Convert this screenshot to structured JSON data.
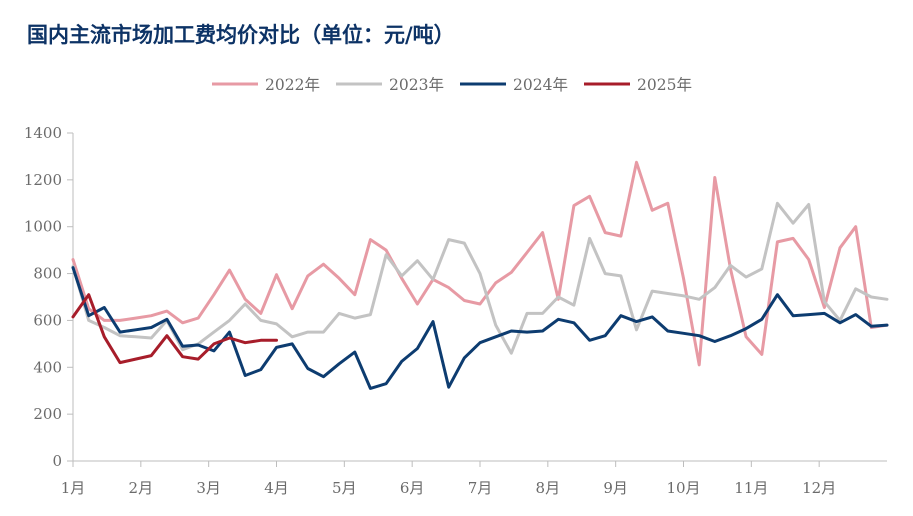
{
  "chart_data": {
    "type": "line",
    "title": "国内主流市场加工费均价对比（单位：元/吨）",
    "x_ticks": [
      "1月",
      "2月",
      "3月",
      "4月",
      "5月",
      "6月",
      "7月",
      "8月",
      "9月",
      "10月",
      "11月",
      "12月"
    ],
    "y_ticks": [
      "0",
      "200",
      "400",
      "600",
      "800",
      "1000",
      "1200",
      "1400"
    ],
    "ylim": [
      0,
      1400
    ],
    "grid": false,
    "legend_position": "top-center",
    "x_unit": "week",
    "series": [
      {
        "name": "2022年",
        "color": "#e79aa4",
        "x": [
          1,
          2,
          3,
          4,
          5,
          6,
          7,
          8,
          9,
          10,
          11,
          12,
          13,
          14,
          15,
          16,
          17,
          18,
          19,
          20,
          21,
          22,
          23,
          24,
          25,
          26,
          27,
          28,
          29,
          30,
          31,
          32,
          33,
          34,
          35,
          36,
          37,
          38,
          39,
          40,
          41,
          42,
          43,
          44,
          45,
          46,
          47,
          48,
          49,
          50,
          51,
          52,
          53
        ],
        "values": [
          860,
          650,
          600,
          600,
          610,
          620,
          640,
          590,
          610,
          710,
          815,
          690,
          630,
          795,
          650,
          790,
          840,
          780,
          710,
          945,
          900,
          780,
          670,
          775,
          740,
          685,
          670,
          760,
          805,
          890,
          975,
          690,
          1090,
          1130,
          975,
          960,
          1275,
          1070,
          1100,
          780,
          410,
          1210,
          820,
          530,
          455,
          935,
          950,
          860,
          655,
          910,
          1000,
          570,
          580
        ]
      },
      {
        "name": "2023年",
        "color": "#c3c3c3",
        "x": [
          1,
          2,
          3,
          4,
          5,
          6,
          7,
          8,
          9,
          10,
          11,
          12,
          13,
          14,
          15,
          16,
          17,
          18,
          19,
          20,
          21,
          22,
          23,
          24,
          25,
          26,
          27,
          28,
          29,
          30,
          31,
          32,
          33,
          34,
          35,
          36,
          37,
          38,
          39,
          40,
          41,
          42,
          43,
          44,
          45,
          46,
          47,
          48,
          49,
          50,
          51,
          52,
          53
        ],
        "values": [
          830,
          600,
          570,
          535,
          530,
          525,
          600,
          475,
          500,
          550,
          600,
          670,
          600,
          585,
          530,
          550,
          550,
          630,
          610,
          625,
          880,
          790,
          855,
          775,
          945,
          930,
          800,
          580,
          460,
          630,
          630,
          700,
          665,
          950,
          800,
          790,
          560,
          725,
          715,
          705,
          690,
          740,
          835,
          785,
          820,
          1100,
          1015,
          1095,
          680,
          600,
          735,
          700,
          690
        ]
      },
      {
        "name": "2024年",
        "color": "#0d3c70",
        "x": [
          1,
          2,
          3,
          4,
          5,
          6,
          7,
          8,
          9,
          10,
          11,
          12,
          13,
          14,
          15,
          16,
          17,
          18,
          19,
          20,
          21,
          22,
          23,
          24,
          25,
          26,
          27,
          28,
          29,
          30,
          31,
          32,
          33,
          34,
          35,
          36,
          37,
          38,
          39,
          40,
          41,
          42,
          43,
          44,
          45,
          46,
          47,
          48,
          49,
          50,
          51,
          52,
          53
        ],
        "values": [
          825,
          620,
          655,
          550,
          560,
          570,
          605,
          490,
          495,
          470,
          550,
          365,
          390,
          485,
          500,
          395,
          360,
          415,
          465,
          310,
          330,
          425,
          480,
          595,
          315,
          440,
          505,
          530,
          555,
          550,
          555,
          605,
          590,
          515,
          535,
          620,
          595,
          615,
          555,
          545,
          535,
          510,
          535,
          565,
          605,
          710,
          620,
          625,
          630,
          590,
          625,
          575,
          580
        ]
      },
      {
        "name": "2025年",
        "color": "#a71d2a",
        "x": [
          1,
          2,
          3,
          4,
          5,
          6,
          7,
          8,
          9,
          10,
          11,
          12,
          13,
          14
        ],
        "values": [
          615,
          710,
          530,
          420,
          435,
          450,
          535,
          445,
          435,
          500,
          525,
          505,
          515,
          515
        ]
      }
    ]
  }
}
